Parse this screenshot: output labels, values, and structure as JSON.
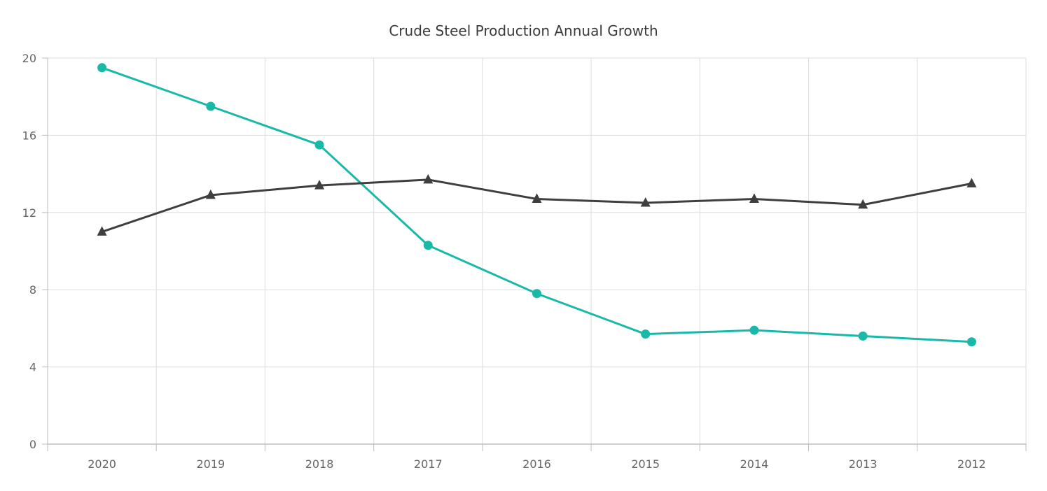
{
  "chart_data": {
    "type": "line",
    "title": "Crude Steel Production Annual Growth",
    "xlabel": "",
    "ylabel": "",
    "categories": [
      "2020",
      "2019",
      "2018",
      "2017",
      "2016",
      "2015",
      "2014",
      "2013",
      "2012"
    ],
    "ylim": [
      0,
      20
    ],
    "yticks": [
      "0",
      "4",
      "8",
      "12",
      "16",
      "20"
    ],
    "grid": true,
    "series": [
      {
        "color": "#19b9a9",
        "marker": "circle",
        "values": [
          19.5,
          17.5,
          15.5,
          10.3,
          7.8,
          5.7,
          5.9,
          5.6,
          5.3
        ]
      },
      {
        "color": "#3f3f3f",
        "marker": "triangle",
        "values": [
          11.0,
          12.9,
          13.4,
          13.7,
          12.7,
          12.5,
          12.7,
          12.4,
          13.5
        ]
      }
    ]
  }
}
